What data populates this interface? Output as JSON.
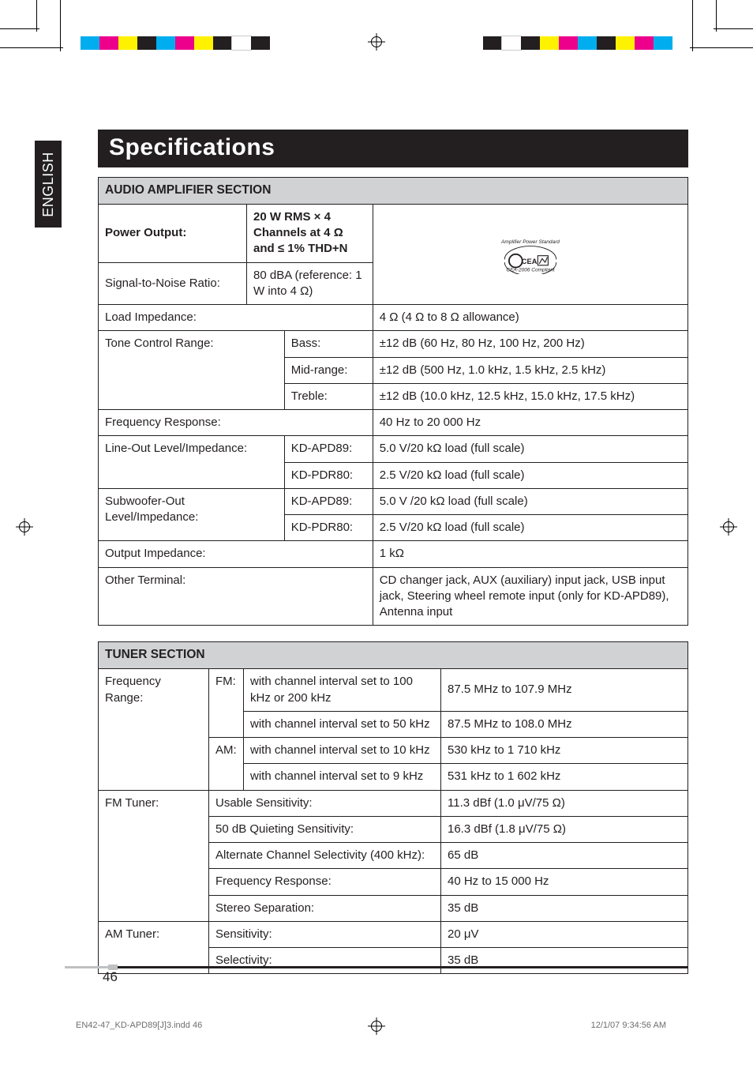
{
  "page_title": "Specifications",
  "side_tab": "ENGLISH",
  "page_number": "46",
  "slug_left": "EN42-47_KD-APD89[J]3.indd   46",
  "slug_right": "12/1/07   9:34:56 AM",
  "colorbars_left": [
    "#00aeef",
    "#ec008c",
    "#fff200",
    "#231f20",
    "#00aeef",
    "#ec008c",
    "#fff200",
    "#231f20",
    "#ffffff",
    "#231f20"
  ],
  "colorbars_right": [
    "#231f20",
    "#ffffff",
    "#231f20",
    "#fff200",
    "#ec008c",
    "#00aeef",
    "#231f20",
    "#fff200",
    "#ec008c",
    "#00aeef"
  ],
  "amp": {
    "header": "AUDIO AMPLIFIER SECTION",
    "power_output_label": "Power Output:",
    "power_output_val": "20 W RMS × 4 Channels at 4 Ω and ≤ 1% THD+N",
    "snr_label": "Signal-to-Noise Ratio:",
    "snr_val": "80 dBA (reference: 1 W into 4 Ω)",
    "load_label": "Load Impedance:",
    "load_val": "4 Ω (4 Ω to 8 Ω allowance)",
    "tone_label": "Tone Control Range:",
    "tone_bass_l": "Bass:",
    "tone_bass_v": "±12 dB (60 Hz, 80 Hz, 100 Hz, 200 Hz)",
    "tone_mid_l": "Mid-range:",
    "tone_mid_v": "±12 dB (500 Hz, 1.0 kHz, 1.5 kHz, 2.5 kHz)",
    "tone_treble_l": "Treble:",
    "tone_treble_v": "±12 dB (10.0 kHz, 12.5 kHz, 15.0 kHz, 17.5 kHz)",
    "freq_label": "Frequency Response:",
    "freq_val": "40 Hz to 20 000 Hz",
    "lineout_label": "Line-Out Level/Impedance:",
    "lineout_a_l": "KD-APD89:",
    "lineout_a_v": "5.0 V/20 kΩ load (full scale)",
    "lineout_b_l": "KD-PDR80:",
    "lineout_b_v": "2.5 V/20 kΩ load (full scale)",
    "sub_label": "Subwoofer-Out Level/Impedance:",
    "sub_a_l": "KD-APD89:",
    "sub_a_v": "5.0 V /20 kΩ load (full scale)",
    "sub_b_l": "KD-PDR80:",
    "sub_b_v": "2.5 V/20 kΩ load (full scale)",
    "outimp_label": "Output Impedance:",
    "outimp_val": "1 kΩ",
    "other_label": "Other Terminal:",
    "other_val": "CD changer jack, AUX (auxiliary) input jack, USB input jack, Steering wheel remote input (only for KD-APD89), Antenna input"
  },
  "tuner": {
    "header": "TUNER SECTION",
    "freqrange_label": "Frequency Range:",
    "fm_label": "FM:",
    "am_label": "AM:",
    "fm1_l": "with channel interval set to 100 kHz or 200 kHz",
    "fm1_v": "87.5 MHz to 107.9 MHz",
    "fm2_l": "with channel interval set to 50 kHz",
    "fm2_v": "87.5 MHz to 108.0 MHz",
    "am1_l": "with channel interval set to 10 kHz",
    "am1_v": "530 kHz to 1 710 kHz",
    "am2_l": "with channel interval set to 9 kHz",
    "am2_v": "531 kHz to 1 602 kHz",
    "fmtuner_label": "FM Tuner:",
    "usable_l": "Usable Sensitivity:",
    "usable_v": "11.3 dBf (1.0 μV/75 Ω)",
    "quiet_l": "50 dB Quieting Sensitivity:",
    "quiet_v": "16.3 dBf (1.8 μV/75 Ω)",
    "altsel_l": "Alternate Channel Selectivity (400 kHz):",
    "altsel_v": "65 dB",
    "fresp_l": "Frequency Response:",
    "fresp_v": "40 Hz to 15 000 Hz",
    "stereo_l": "Stereo Separation:",
    "stereo_v": "35 dB",
    "amtuner_label": "AM Tuner:",
    "sens_l": "Sensitivity:",
    "sens_v": "20 μV",
    "sel_l": "Selectivity:",
    "sel_v": "35 dB"
  }
}
